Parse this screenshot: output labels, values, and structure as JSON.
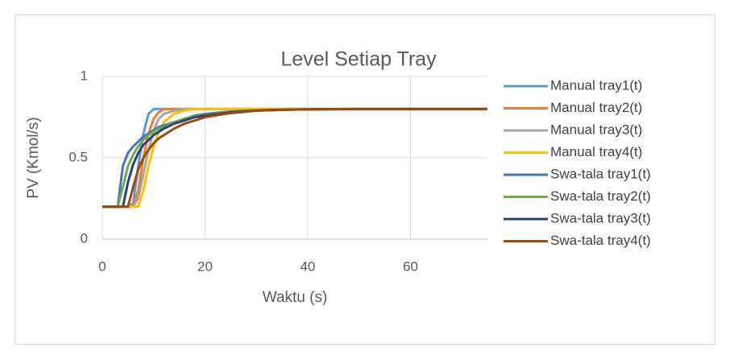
{
  "chart_data": {
    "type": "line",
    "title": "Level Setiap Tray",
    "x_label": "Waktu (s)",
    "y_label": "PV (Kmol/s)",
    "x": [
      0,
      2,
      3,
      4,
      5,
      6,
      7,
      8,
      9,
      10,
      11,
      12,
      14,
      16,
      18,
      20,
      25,
      30,
      35,
      40,
      50,
      60,
      75
    ],
    "series": [
      {
        "name": "Manual tray1(t)",
        "color": "#5b9bd5",
        "values": [
          0.2,
          0.2,
          0.2,
          0.2,
          0.2,
          0.22,
          0.45,
          0.65,
          0.77,
          0.8,
          0.8,
          0.8,
          0.8,
          0.8,
          0.8,
          0.8,
          0.8,
          0.8,
          0.8,
          0.8,
          0.8,
          0.8,
          0.8
        ]
      },
      {
        "name": "Manual tray2(t)",
        "color": "#ed7d31",
        "values": [
          0.2,
          0.2,
          0.2,
          0.2,
          0.2,
          0.2,
          0.3,
          0.5,
          0.65,
          0.74,
          0.78,
          0.8,
          0.8,
          0.8,
          0.8,
          0.8,
          0.8,
          0.8,
          0.8,
          0.8,
          0.8,
          0.8,
          0.8
        ]
      },
      {
        "name": "Manual tray3(t)",
        "color": "#a5a5a5",
        "values": [
          0.2,
          0.2,
          0.2,
          0.2,
          0.2,
          0.2,
          0.25,
          0.4,
          0.55,
          0.67,
          0.74,
          0.77,
          0.79,
          0.8,
          0.8,
          0.8,
          0.8,
          0.8,
          0.8,
          0.8,
          0.8,
          0.8,
          0.8
        ]
      },
      {
        "name": "Manual tray4(t)",
        "color": "#ffc000",
        "values": [
          0.2,
          0.2,
          0.2,
          0.2,
          0.2,
          0.2,
          0.2,
          0.3,
          0.45,
          0.57,
          0.66,
          0.72,
          0.77,
          0.79,
          0.8,
          0.8,
          0.8,
          0.8,
          0.8,
          0.8,
          0.8,
          0.8,
          0.8
        ]
      },
      {
        "name": "Swa-tala tray1(t)",
        "color": "#4472c4",
        "values": [
          0.2,
          0.2,
          0.2,
          0.45,
          0.53,
          0.57,
          0.6,
          0.63,
          0.65,
          0.67,
          0.69,
          0.7,
          0.72,
          0.74,
          0.76,
          0.77,
          0.785,
          0.792,
          0.796,
          0.798,
          0.8,
          0.8,
          0.8
        ]
      },
      {
        "name": "Swa-tala tray2(t)",
        "color": "#70ad47",
        "values": [
          0.2,
          0.2,
          0.2,
          0.32,
          0.45,
          0.52,
          0.57,
          0.61,
          0.64,
          0.66,
          0.68,
          0.69,
          0.72,
          0.74,
          0.755,
          0.765,
          0.783,
          0.791,
          0.796,
          0.798,
          0.8,
          0.8,
          0.8
        ]
      },
      {
        "name": "Swa-tala tray3(t)",
        "color": "#264478",
        "values": [
          0.2,
          0.2,
          0.2,
          0.2,
          0.35,
          0.46,
          0.53,
          0.58,
          0.61,
          0.64,
          0.66,
          0.68,
          0.71,
          0.73,
          0.75,
          0.76,
          0.78,
          0.79,
          0.795,
          0.798,
          0.8,
          0.8,
          0.8
        ]
      },
      {
        "name": "Swa-tala tray4(t)",
        "color": "#9e480e",
        "values": [
          0.2,
          0.2,
          0.2,
          0.2,
          0.2,
          0.32,
          0.43,
          0.5,
          0.55,
          0.59,
          0.62,
          0.64,
          0.68,
          0.71,
          0.73,
          0.75,
          0.775,
          0.79,
          0.795,
          0.798,
          0.8,
          0.8,
          0.8
        ]
      }
    ],
    "xlim": [
      0,
      75
    ],
    "xticks": [
      0,
      20,
      40,
      60
    ],
    "ylim": [
      0,
      1
    ],
    "yticks": [
      0,
      0.5,
      1
    ],
    "grid": true,
    "legend": "right"
  }
}
